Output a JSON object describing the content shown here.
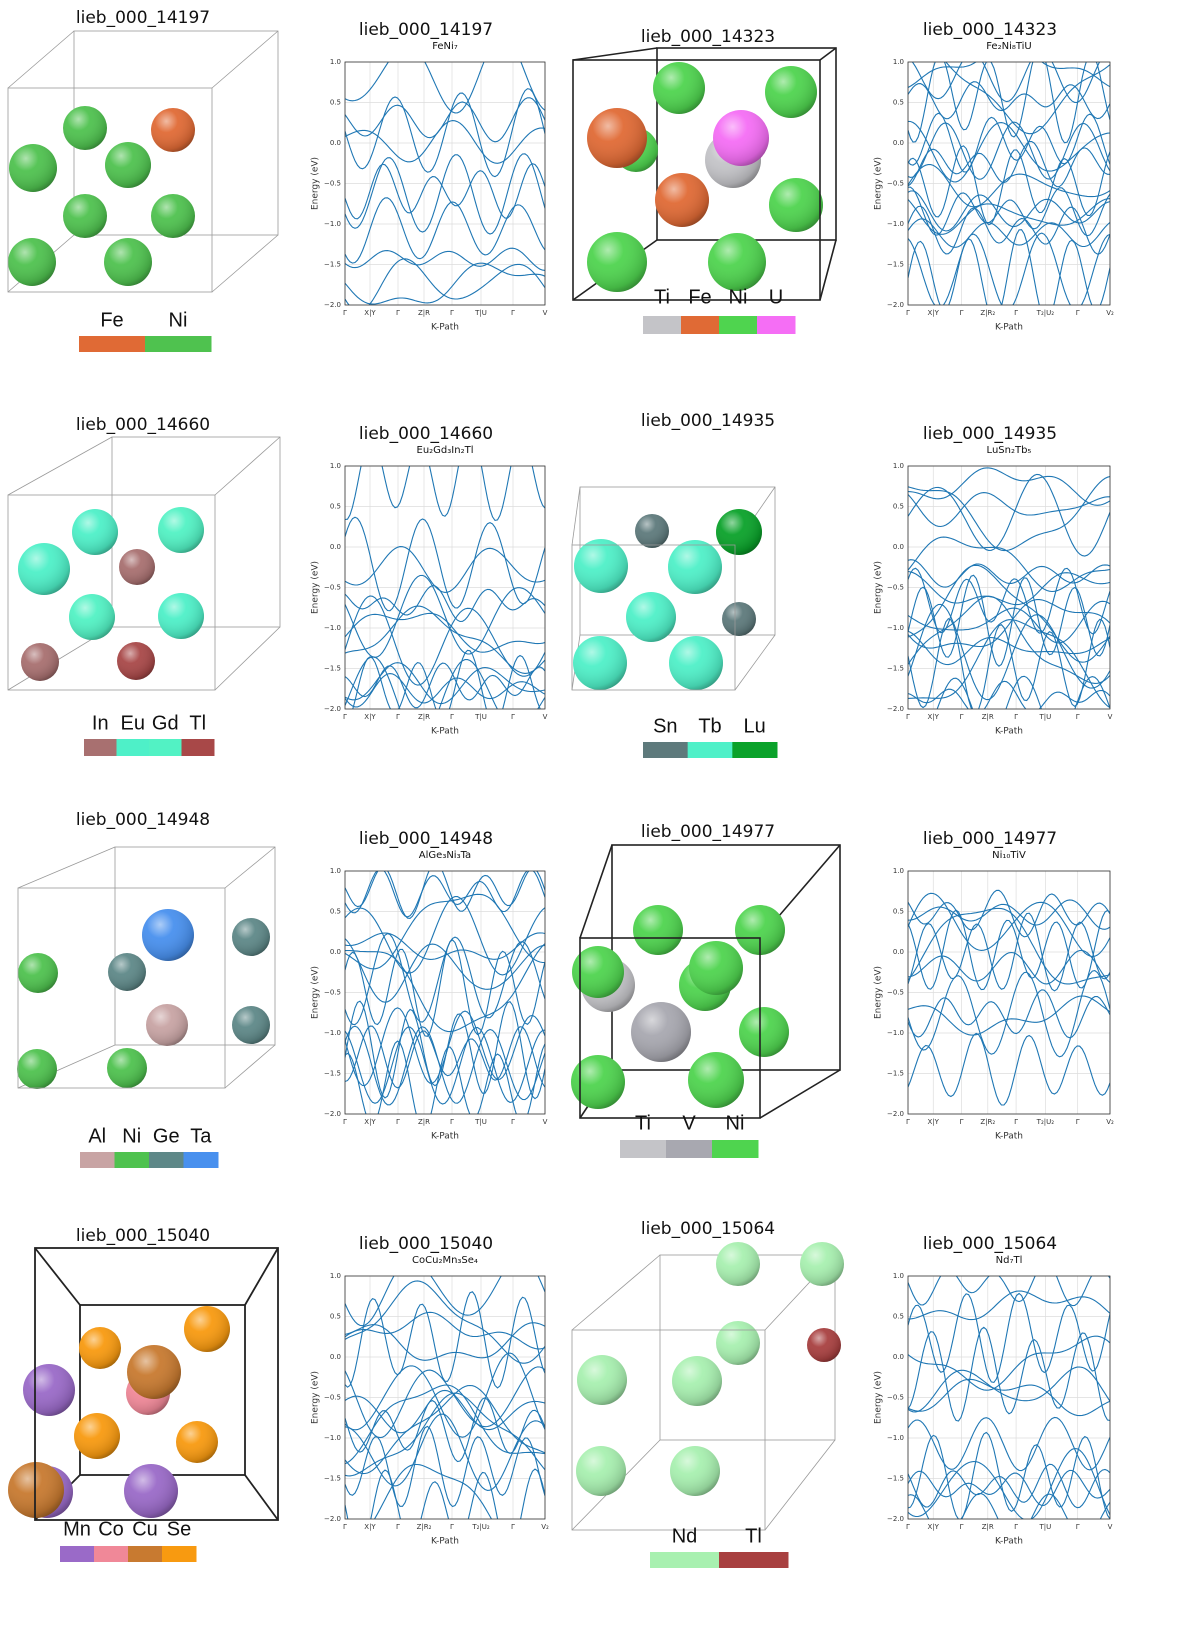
{
  "band_axes": {
    "ylabel": "Energy (eV)",
    "xlabel": "K-Path",
    "yticks": [
      "1.0",
      "0.5",
      "0.0",
      "−0.5",
      "−1.0",
      "−1.5",
      "−2.0"
    ]
  },
  "panels": [
    {
      "structure_title": "lieb_000_14197",
      "elements": [
        {
          "symbol": "Fe",
          "color": "#e06a35"
        },
        {
          "symbol": "Ni",
          "color": "#4fc24f"
        }
      ],
      "band_title": "lieb_000_14197",
      "formula": "FeNi₇",
      "kpath": [
        "Γ",
        "X|Y",
        "Γ",
        "Z|R",
        "Γ",
        "T|U",
        "Γ",
        "V"
      ]
    },
    {
      "structure_title": "lieb_000_14323",
      "elements": [
        {
          "symbol": "Ti",
          "color": "#c4c4c8"
        },
        {
          "symbol": "Fe",
          "color": "#e06a35"
        },
        {
          "symbol": "Ni",
          "color": "#4fd44f"
        },
        {
          "symbol": "U",
          "color": "#f56ef5"
        }
      ],
      "band_title": "lieb_000_14323",
      "formula": "Fe₂Ni₈TiU",
      "kpath": [
        "Γ",
        "X|Y",
        "Γ",
        "Z|R₂",
        "Γ",
        "T₂|U₂",
        "Γ",
        "V₂"
      ]
    },
    {
      "structure_title": "lieb_000_14660",
      "elements": [
        {
          "symbol": "In",
          "color": "#a87070"
        },
        {
          "symbol": "Eu",
          "color": "#4ef0c8"
        },
        {
          "symbol": "Gd",
          "color": "#52f2c4"
        },
        {
          "symbol": "Tl",
          "color": "#a84848"
        }
      ],
      "band_title": "lieb_000_14660",
      "formula": "Eu₂Gd₃In₂Tl",
      "kpath": [
        "Γ",
        "X|Y",
        "Γ",
        "Z|R",
        "Γ",
        "T|U",
        "Γ",
        "V"
      ]
    },
    {
      "structure_title": "lieb_000_14935",
      "elements": [
        {
          "symbol": "Sn",
          "color": "#5e7a7c"
        },
        {
          "symbol": "Tb",
          "color": "#4ff0c8"
        },
        {
          "symbol": "Lu",
          "color": "#0aa22a"
        }
      ],
      "band_title": "lieb_000_14935",
      "formula": "LuSn₂Tb₅",
      "kpath": [
        "Γ",
        "X|Y",
        "Γ",
        "Z|R",
        "Γ",
        "T|U",
        "Γ",
        "V"
      ]
    },
    {
      "structure_title": "lieb_000_14948",
      "elements": [
        {
          "symbol": "Al",
          "color": "#c8a4a4"
        },
        {
          "symbol": "Ni",
          "color": "#4fc24f"
        },
        {
          "symbol": "Ge",
          "color": "#5e8888"
        },
        {
          "symbol": "Ta",
          "color": "#4890ee"
        }
      ],
      "band_title": "lieb_000_14948",
      "formula": "AlGe₃Ni₃Ta",
      "kpath": [
        "Γ",
        "X|Y",
        "Γ",
        "Z|R",
        "Γ",
        "T|U",
        "Γ",
        "V"
      ]
    },
    {
      "structure_title": "lieb_000_14977",
      "elements": [
        {
          "symbol": "Ti",
          "color": "#c4c4c8"
        },
        {
          "symbol": "V",
          "color": "#a8a8b0"
        },
        {
          "symbol": "Ni",
          "color": "#4fd44f"
        }
      ],
      "band_title": "lieb_000_14977",
      "formula": "Ni₁₀TiV",
      "kpath": [
        "Γ",
        "X|Y",
        "Γ",
        "Z|R₂",
        "Γ",
        "T₂|U₂",
        "Γ",
        "V₂"
      ]
    },
    {
      "structure_title": "lieb_000_15040",
      "elements": [
        {
          "symbol": "Mn",
          "color": "#9a6ac8"
        },
        {
          "symbol": "Co",
          "color": "#f08898"
        },
        {
          "symbol": "Cu",
          "color": "#c87a30"
        },
        {
          "symbol": "Se",
          "color": "#f89a10"
        }
      ],
      "band_title": "lieb_000_15040",
      "formula": "CoCu₂Mn₃Se₄",
      "kpath": [
        "Γ",
        "X|Y",
        "Γ",
        "Z|R₂",
        "Γ",
        "T₂|U₂",
        "Γ",
        "V₂"
      ]
    },
    {
      "structure_title": "lieb_000_15064",
      "elements": [
        {
          "symbol": "Nd",
          "color": "#a8f0b0"
        },
        {
          "symbol": "Tl",
          "color": "#a84040"
        }
      ],
      "band_title": "lieb_000_15064",
      "formula": "Nd₇Tl",
      "kpath": [
        "Γ",
        "X|Y",
        "Γ",
        "Z|R",
        "Γ",
        "T|U",
        "Γ",
        "V"
      ]
    }
  ]
}
